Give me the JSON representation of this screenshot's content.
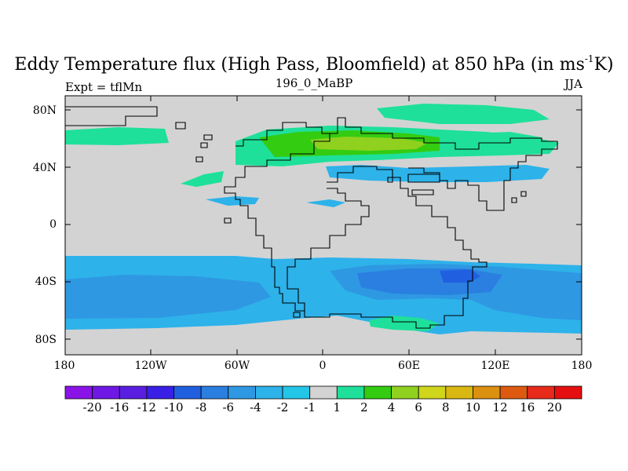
{
  "title": {
    "text": "Eddy Temperature flux (High Pass, Bloomfield) at 850 hPa (in ms",
    "superscript": "-1",
    "unit_end": "K)"
  },
  "left_label": "Expt = tflMn",
  "center_label": "196_0_MaBP",
  "right_label": "JJA",
  "axes": {
    "lat_labels": [
      "80N",
      "40N",
      "0",
      "40S",
      "80S"
    ],
    "lon_labels": [
      "180",
      "120W",
      "60W",
      "0",
      "60E",
      "120E",
      "180"
    ]
  },
  "colorbar": {
    "labels": [
      "-20",
      "-16",
      "-12",
      "-10",
      "-8",
      "-6",
      "-4",
      "-2",
      "-1",
      "1",
      "2",
      "4",
      "6",
      "8",
      "10",
      "12",
      "16",
      "20"
    ],
    "colors": [
      "#8a14e8",
      "#6f18e6",
      "#5a1ee0",
      "#3a1fe6",
      "#2060e0",
      "#2a7fe0",
      "#2f98e2",
      "#2db2ea",
      "#24c6e8",
      "#d3d3d3",
      "#1ee09a",
      "#33cc11",
      "#8fd11e",
      "#cfd61c",
      "#d9b911",
      "#db9010",
      "#dd5a10",
      "#e82a1a",
      "#e60f0f"
    ]
  },
  "map_colors": {
    "land_ocean_neutral": "#d3d3d3",
    "coastline": "#000000"
  }
}
